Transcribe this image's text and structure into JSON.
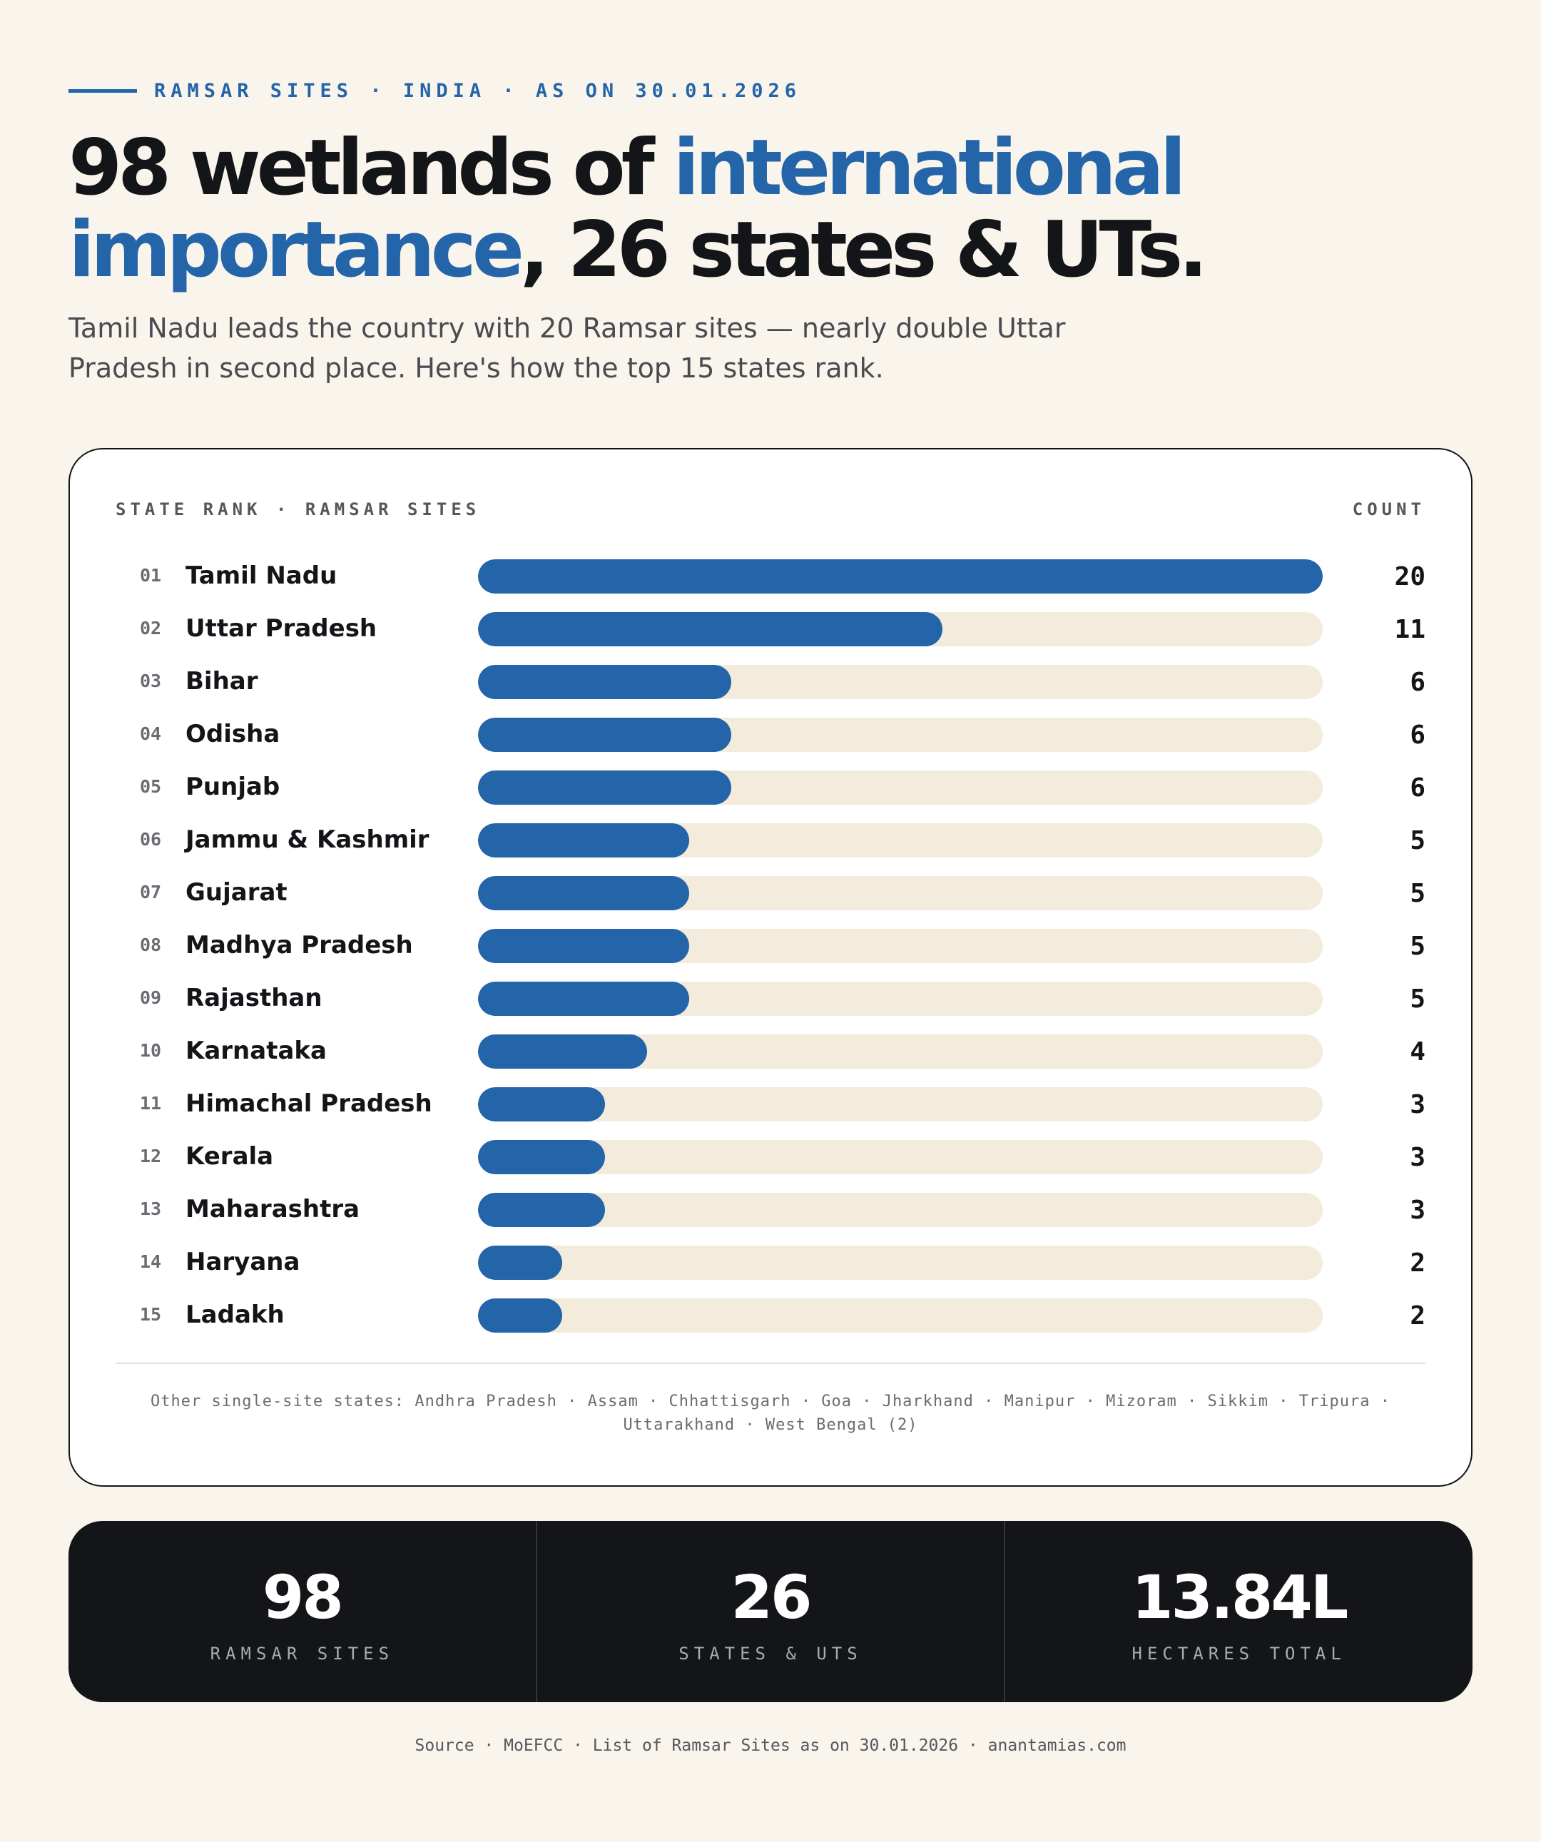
{
  "eyebrow": "RAMSAR SITES · INDIA · AS ON 30.01.2026",
  "headline": {
    "part1": "98 wetlands of ",
    "highlight1": "international",
    "highlight2": "importance",
    "part2": ", 26 states & UTs."
  },
  "subhead": "Tamil Nadu leads the country with 20 Ramsar sites — nearly double Uttar Pradesh in second place. Here's how the top 15 states rank.",
  "card": {
    "header_left": "STATE RANK · RAMSAR SITES",
    "header_right": "COUNT",
    "other_states": "Other single-site states: Andhra Pradesh · Assam · Chhattisgarh · Goa · Jharkhand · Manipur · Mizoram · Sikkim · Tripura · Uttarakhand · West Bengal (2)"
  },
  "chart_data": {
    "type": "bar",
    "orientation": "horizontal",
    "title": "STATE RANK · RAMSAR SITES",
    "value_label": "COUNT",
    "xlim": [
      0,
      20
    ],
    "bar_color": "#2464a8",
    "track_color": "#f3ebdb",
    "categories": [
      "Tamil Nadu",
      "Uttar Pradesh",
      "Bihar",
      "Odisha",
      "Punjab",
      "Jammu & Kashmir",
      "Gujarat",
      "Madhya Pradesh",
      "Rajasthan",
      "Karnataka",
      "Himachal Pradesh",
      "Kerala",
      "Maharashtra",
      "Haryana",
      "Ladakh"
    ],
    "ranks": [
      "01",
      "02",
      "03",
      "04",
      "05",
      "06",
      "07",
      "08",
      "09",
      "10",
      "11",
      "12",
      "13",
      "14",
      "15"
    ],
    "values": [
      20,
      11,
      6,
      6,
      6,
      5,
      5,
      5,
      5,
      4,
      3,
      3,
      3,
      2,
      2
    ]
  },
  "stats": [
    {
      "value": "98",
      "label": "RAMSAR SITES"
    },
    {
      "value": "26",
      "label": "STATES & UTS"
    },
    {
      "value": "13.84L",
      "label": "HECTARES TOTAL"
    }
  ],
  "footer": "Source · MoEFCC · List of Ramsar Sites as on 30.01.2026 · anantamias.com",
  "colors": {
    "background": "#f9f5ec",
    "accent": "#2464a8",
    "ink": "#141518"
  }
}
